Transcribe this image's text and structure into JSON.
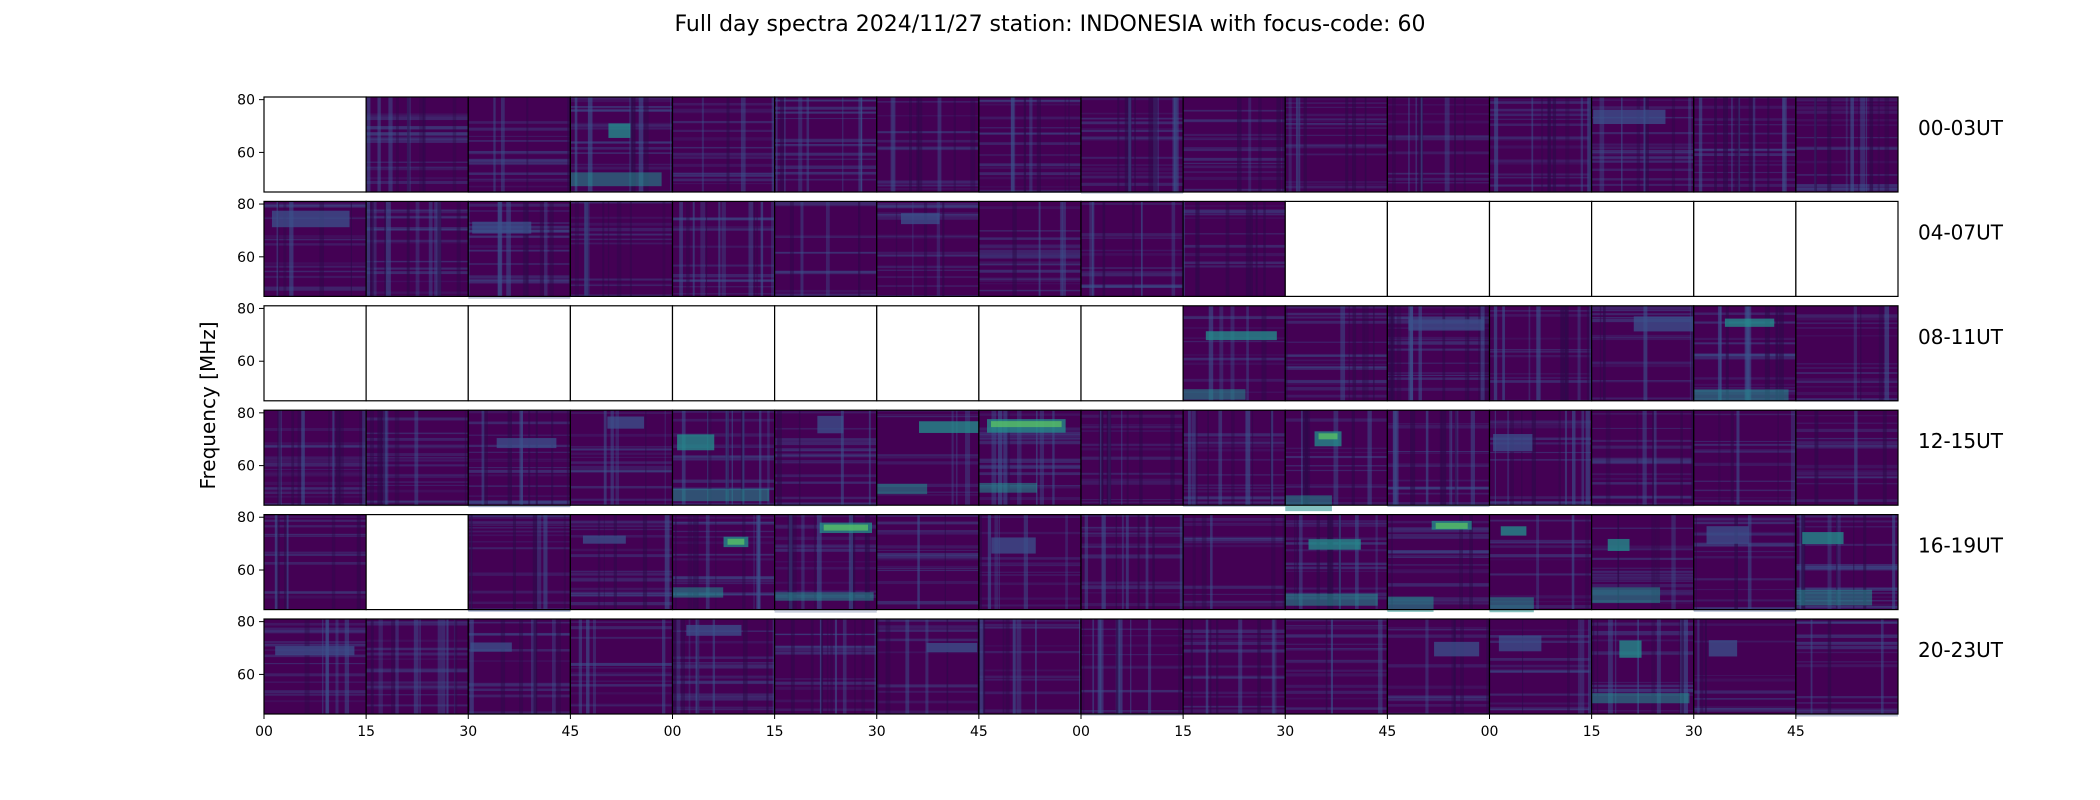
{
  "figure": {
    "title": "Full day spectra 2024/11/27 station: INDONESIA with focus-code: 60"
  },
  "chart_data": {
    "type": "heatmap",
    "title": "Full day spectra 2024/11/27 station: INDONESIA with focus-code: 60",
    "ylabel": "Frequency [MHz]",
    "yticks": [
      "60",
      "80"
    ],
    "ylim": [
      45,
      81
    ],
    "xticks": [
      "00",
      "15",
      "30",
      "45",
      "00",
      "15",
      "30",
      "45",
      "00",
      "15",
      "30",
      "45",
      "00",
      "15",
      "30",
      "45"
    ],
    "row_labels": [
      "00-03UT",
      "04-07UT",
      "08-11UT",
      "12-15UT",
      "16-19UT",
      "20-23UT"
    ],
    "panels_per_row": 16,
    "minutes_per_panel": 15,
    "colormap": [
      "#440154",
      "#3b528b",
      "#21918c",
      "#5ec962"
    ],
    "missing_color": "#ffffff",
    "panel_status": [
      [
        0,
        1,
        1,
        1,
        1,
        1,
        1,
        1,
        1,
        1,
        1,
        1,
        1,
        1,
        1,
        1
      ],
      [
        1,
        1,
        1,
        1,
        1,
        1,
        1,
        1,
        1,
        1,
        0,
        0,
        0,
        0,
        0,
        0
      ],
      [
        0,
        0,
        0,
        0,
        0,
        0,
        0,
        0,
        0,
        1,
        1,
        1,
        1,
        1,
        1,
        1
      ],
      [
        1,
        1,
        1,
        1,
        1,
        1,
        1,
        1,
        1,
        1,
        1,
        1,
        1,
        1,
        1,
        1
      ],
      [
        1,
        0,
        1,
        1,
        1,
        1,
        1,
        1,
        1,
        1,
        1,
        1,
        1,
        1,
        1,
        1
      ],
      [
        1,
        1,
        1,
        1,
        1,
        1,
        1,
        1,
        1,
        1,
        1,
        1,
        1,
        1,
        1,
        1
      ]
    ],
    "intensity_note": "",
    "activity": [
      [
        0,
        1,
        1,
        3,
        1,
        1,
        1,
        1,
        1,
        1,
        1,
        1,
        1,
        2,
        1,
        1
      ],
      [
        2,
        1,
        2,
        1,
        1,
        1,
        2,
        1,
        1,
        1,
        0,
        0,
        0,
        0,
        0,
        0
      ],
      [
        0,
        0,
        0,
        0,
        0,
        0,
        0,
        0,
        0,
        3,
        1,
        2,
        1,
        2,
        3,
        1
      ],
      [
        1,
        1,
        2,
        2,
        3,
        2,
        3,
        4,
        1,
        1,
        4,
        1,
        2,
        1,
        1,
        1
      ],
      [
        1,
        0,
        1,
        2,
        4,
        4,
        1,
        2,
        1,
        1,
        3,
        4,
        3,
        3,
        2,
        3
      ],
      [
        2,
        1,
        2,
        1,
        2,
        1,
        2,
        1,
        1,
        1,
        1,
        2,
        2,
        3,
        2,
        1
      ]
    ]
  }
}
